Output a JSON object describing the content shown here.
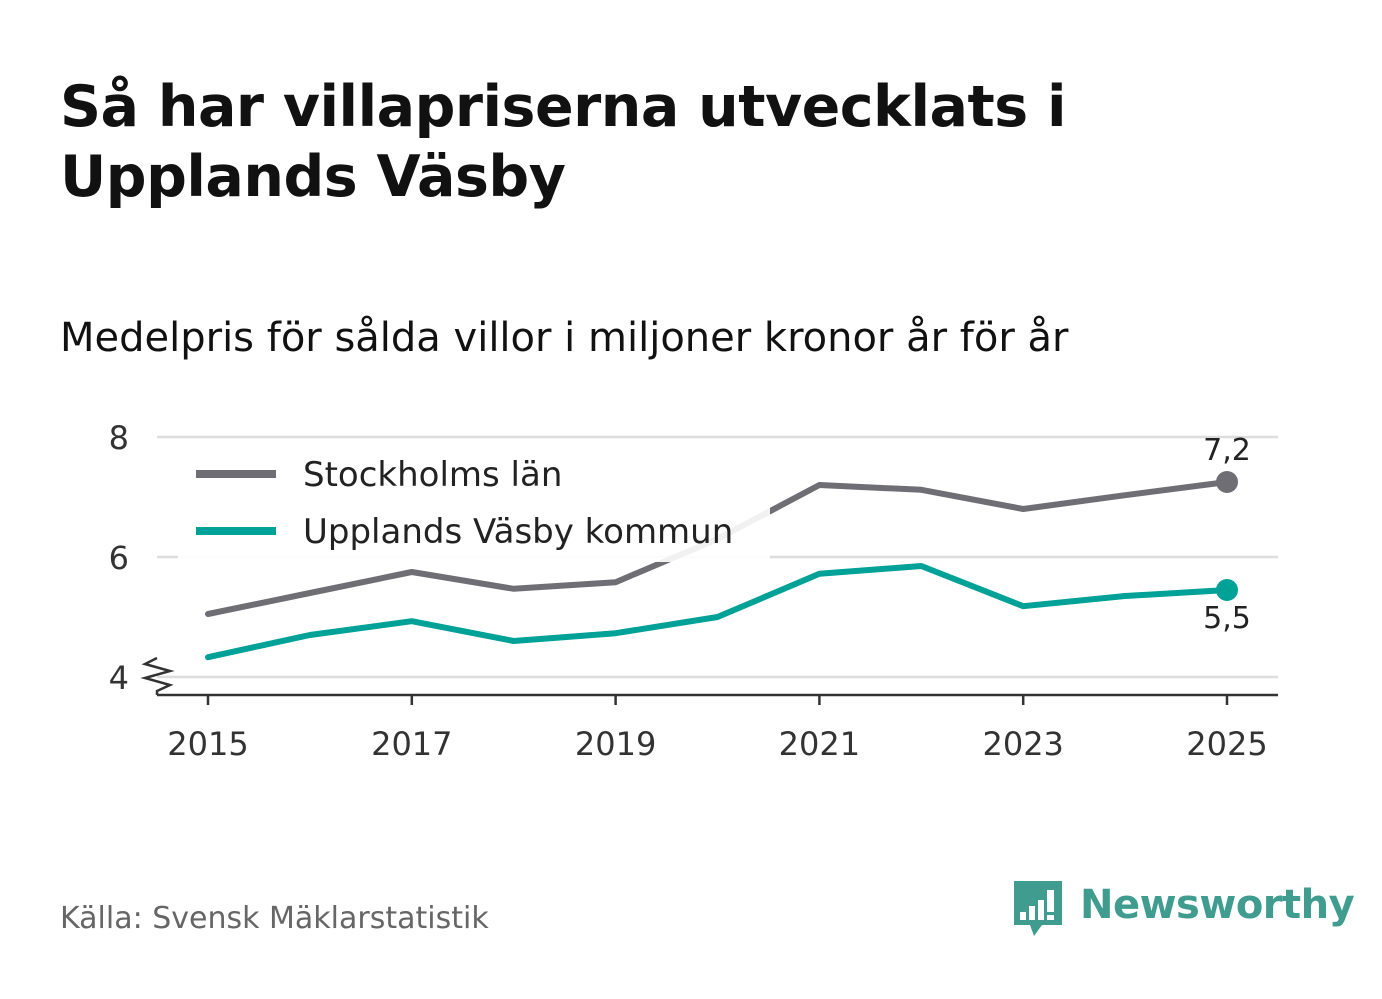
{
  "header": {
    "title": "Så har villapriserna utvecklats i Upplands Väsby",
    "subtitle": "Medelpris för sålda villor i miljoner kronor år för år"
  },
  "footer": {
    "source": "Källa: Svensk Mäklarstatistik",
    "brand": "Newsworthy",
    "brand_icon": "newsworthy-logo-icon"
  },
  "chart_data": {
    "type": "line",
    "title": "Så har villapriserna utvecklats i Upplands Väsby",
    "subtitle": "Medelpris för sålda villor i miljoner kronor år för år",
    "xlabel": "",
    "ylabel": "",
    "x": [
      2015,
      2016,
      2017,
      2018,
      2019,
      2020,
      2021,
      2022,
      2023,
      2024,
      2025
    ],
    "xticks": [
      "2015",
      "2017",
      "2019",
      "2021",
      "2023",
      "2025"
    ],
    "xlim": [
      2015,
      2025
    ],
    "yticks": [
      "4",
      "6",
      "8"
    ],
    "ylim": [
      4,
      8
    ],
    "y_axis_break": true,
    "grid": true,
    "legend_position": "top-left",
    "series": [
      {
        "name": "Stockholms län",
        "color": "#6f6e75",
        "values": [
          5.05,
          5.4,
          5.75,
          5.47,
          5.58,
          6.3,
          7.2,
          7.12,
          6.8,
          7.03,
          7.25
        ],
        "end_label": "7,2",
        "end_label_position": "above"
      },
      {
        "name": "Upplands Väsby kommun",
        "color": "#00a197",
        "values": [
          4.33,
          4.7,
          4.93,
          4.6,
          4.73,
          5.0,
          5.72,
          5.85,
          5.18,
          5.35,
          5.45
        ],
        "end_label": "5,5",
        "end_label_position": "below"
      }
    ]
  }
}
